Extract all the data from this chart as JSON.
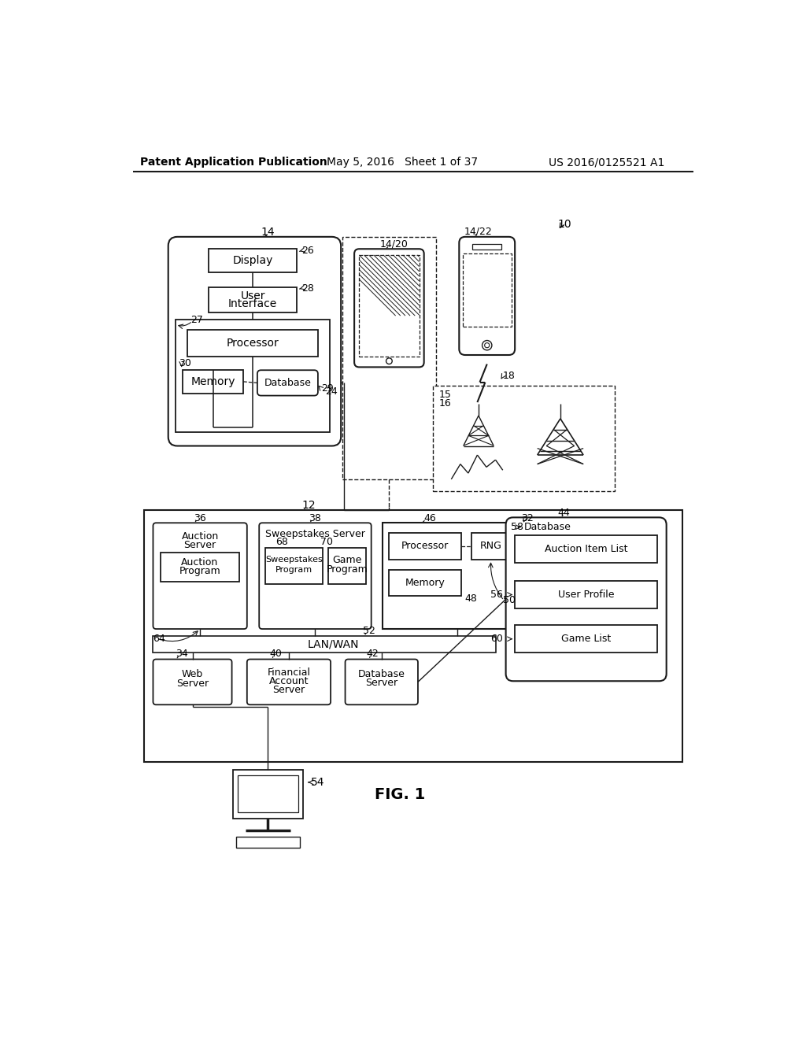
{
  "title_left": "Patent Application Publication",
  "title_mid": "May 5, 2016   Sheet 1 of 37",
  "title_right": "US 2016/0125521 A1",
  "fig_label": "FIG. 1",
  "bg_color": "#ffffff",
  "line_color": "#1a1a1a",
  "text_color": "#000000"
}
